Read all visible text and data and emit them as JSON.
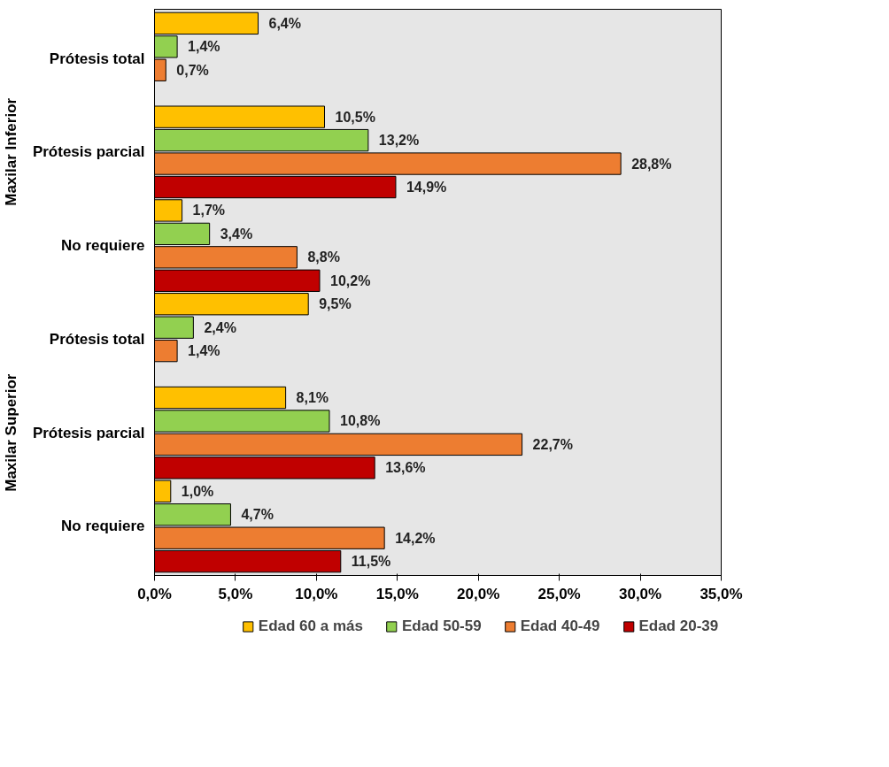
{
  "chart_data": {
    "type": "bar",
    "orientation": "horizontal",
    "categories": [
      "Prótesis total",
      "Prótesis parcial",
      "No requiere",
      "Prótesis total",
      "Prótesis parcial",
      "No requiere"
    ],
    "annotations": [
      "Maxilar Inferior",
      "Maxilar Superior"
    ],
    "series": [
      {
        "name": "Edad 60 a más",
        "color": "#ffc000",
        "values": [
          6.4,
          10.5,
          1.7,
          9.5,
          8.1,
          1.0
        ],
        "value_labels": [
          "6,4%",
          "10,5%",
          "1,7%",
          "9,5%",
          "8,1%",
          "1,0%"
        ]
      },
      {
        "name": "Edad 50-59",
        "color": "#92d050",
        "values": [
          1.4,
          13.2,
          3.4,
          2.4,
          10.8,
          4.7
        ],
        "value_labels": [
          "1,4%",
          "13,2%",
          "3,4%",
          "2,4%",
          "10,8%",
          "4,7%"
        ]
      },
      {
        "name": "Edad 40-49",
        "color": "#ed7d31",
        "values": [
          0.7,
          28.8,
          8.8,
          1.4,
          22.7,
          14.2
        ],
        "value_labels": [
          "0,7%",
          "28,8%",
          "8,8%",
          "1,4%",
          "22,7%",
          "14,2%"
        ]
      },
      {
        "name": "Edad 20-39",
        "color": "#c00000",
        "values": [
          null,
          14.9,
          10.2,
          null,
          13.6,
          11.5
        ],
        "value_labels": [
          null,
          "14,9%",
          "10,2%",
          null,
          "13,6%",
          "11,5%"
        ]
      }
    ],
    "xlim": [
      0,
      35
    ],
    "xticks": [
      {
        "value": 0,
        "label": "0,0%"
      },
      {
        "value": 5,
        "label": "5,0%"
      },
      {
        "value": 10,
        "label": "10,0%"
      },
      {
        "value": 15,
        "label": "15,0%"
      },
      {
        "value": 20,
        "label": "20,0%"
      },
      {
        "value": 25,
        "label": "25,0%"
      },
      {
        "value": 30,
        "label": "30,0%"
      },
      {
        "value": 35,
        "label": "35,0%"
      }
    ],
    "legend": "bottom"
  }
}
